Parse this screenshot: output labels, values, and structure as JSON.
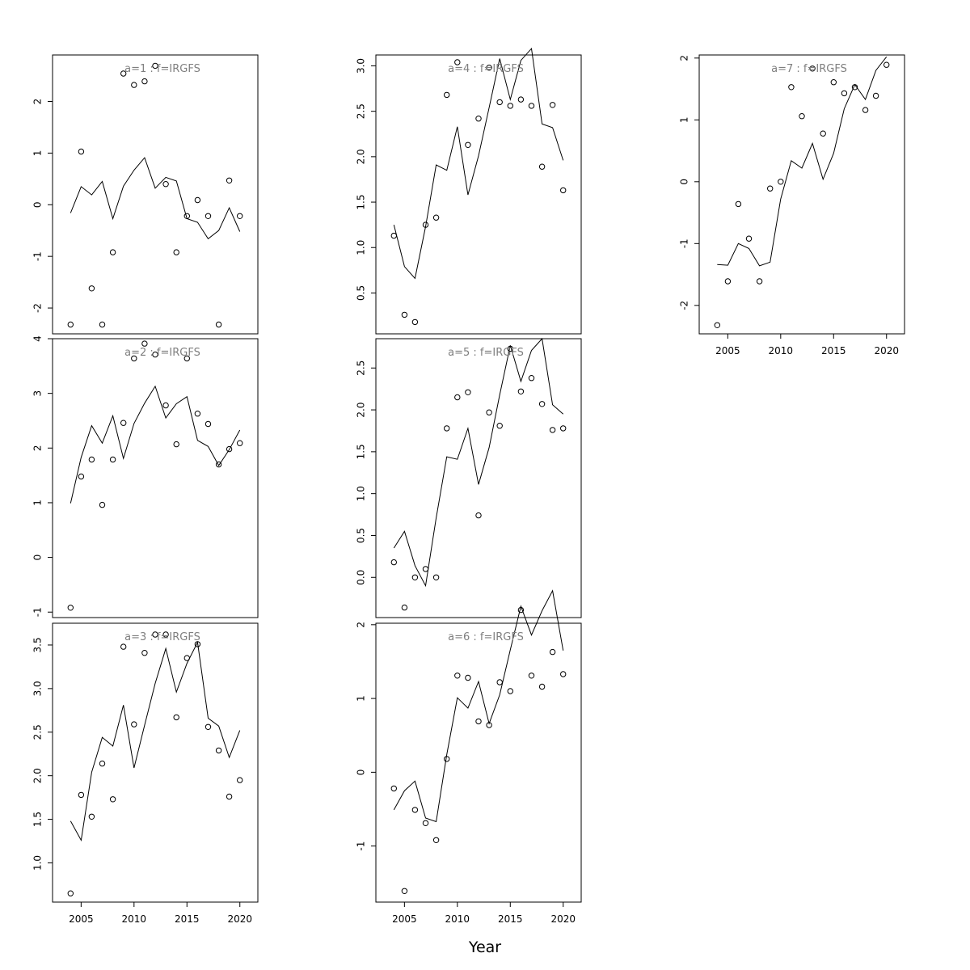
{
  "figure": {
    "xlabel": "Year"
  },
  "chart_data": [
    {
      "type": "scatter",
      "title": "a=1  :  f=IRGFS",
      "x": [
        2004,
        2005,
        2006,
        2007,
        2008,
        2009,
        2010,
        2011,
        2012,
        2013,
        2014,
        2015,
        2016,
        2017,
        2018,
        2019,
        2020
      ],
      "series": [
        {
          "values": [
            -2.32,
            1.03,
            -1.62,
            -2.32,
            -0.92,
            2.54,
            2.32,
            2.39,
            2.69,
            0.4,
            -0.92,
            -0.22,
            0.09,
            -0.22,
            -2.32,
            0.47,
            -0.22
          ]
        },
        {
          "values": [
            -0.16,
            0.35,
            0.19,
            0.45,
            -0.27,
            0.36,
            0.67,
            0.91,
            0.32,
            0.53,
            0.46,
            -0.27,
            -0.34,
            -0.66,
            -0.5,
            -0.06,
            -0.52
          ]
        }
      ],
      "xlim": [
        2002.3,
        2021.7
      ],
      "ylim": [
        -2.5,
        2.9
      ],
      "xticks": [
        2005,
        2010,
        2015,
        2020
      ],
      "yticks": [
        -2,
        -1,
        0,
        1,
        2
      ],
      "show_xticks": false
    },
    {
      "type": "scatter",
      "title": "a=2  :  f=IRGFS",
      "x": [
        2004,
        2005,
        2006,
        2007,
        2008,
        2009,
        2010,
        2011,
        2012,
        2013,
        2014,
        2015,
        2016,
        2017,
        2018,
        2019,
        2020
      ],
      "series": [
        {
          "values": [
            -0.92,
            1.48,
            1.79,
            0.96,
            1.79,
            2.46,
            3.64,
            3.91,
            3.71,
            2.78,
            2.07,
            3.64,
            2.63,
            2.44,
            1.7,
            1.98,
            2.09
          ]
        },
        {
          "values": [
            0.99,
            1.83,
            2.41,
            2.09,
            2.59,
            1.81,
            2.45,
            2.82,
            3.13,
            2.55,
            2.81,
            2.94,
            2.14,
            2.03,
            1.68,
            1.97,
            2.33
          ]
        }
      ],
      "xlim": [
        2002.3,
        2021.7
      ],
      "ylim": [
        -1.1,
        4.0
      ],
      "xticks": [
        2005,
        2010,
        2015,
        2020
      ],
      "yticks": [
        -1,
        0,
        1,
        2,
        3,
        4
      ],
      "show_xticks": false
    },
    {
      "type": "scatter",
      "title": "a=3  :  f=IRGFS",
      "x": [
        2004,
        2005,
        2006,
        2007,
        2008,
        2009,
        2010,
        2011,
        2012,
        2013,
        2014,
        2015,
        2016,
        2017,
        2018,
        2019,
        2020
      ],
      "series": [
        {
          "values": [
            0.65,
            1.78,
            1.53,
            2.14,
            1.73,
            3.48,
            2.59,
            3.41,
            3.62,
            3.62,
            2.67,
            3.35,
            3.51,
            2.56,
            2.29,
            1.76,
            1.95
          ]
        },
        {
          "values": [
            1.48,
            1.26,
            2.04,
            2.44,
            2.34,
            2.81,
            2.09,
            2.58,
            3.06,
            3.46,
            2.96,
            3.29,
            3.53,
            2.66,
            2.57,
            2.21,
            2.52
          ]
        }
      ],
      "xlim": [
        2002.3,
        2021.7
      ],
      "ylim": [
        0.55,
        3.75
      ],
      "xticks": [
        2005,
        2010,
        2015,
        2020
      ],
      "yticks": [
        1.0,
        1.5,
        2.0,
        2.5,
        3.0,
        3.5
      ],
      "show_xticks": true
    },
    {
      "type": "scatter",
      "title": "a=4  :  f=IRGFS",
      "x": [
        2004,
        2005,
        2006,
        2007,
        2008,
        2009,
        2010,
        2011,
        2012,
        2013,
        2014,
        2015,
        2016,
        2017,
        2018,
        2019,
        2020
      ],
      "series": [
        {
          "values": [
            1.13,
            0.26,
            0.18,
            1.25,
            1.33,
            2.68,
            3.04,
            2.13,
            2.42,
            2.98,
            2.6,
            2.56,
            2.63,
            2.56,
            1.89,
            2.57,
            1.63
          ]
        },
        {
          "values": [
            1.25,
            0.79,
            0.66,
            1.23,
            1.91,
            1.85,
            2.33,
            1.58,
            2.01,
            2.54,
            3.08,
            2.63,
            3.06,
            3.19,
            2.36,
            2.32,
            1.96
          ]
        }
      ],
      "xlim": [
        2002.3,
        2021.7
      ],
      "ylim": [
        0.05,
        3.12
      ],
      "xticks": [
        2005,
        2010,
        2015,
        2020
      ],
      "yticks": [
        0.5,
        1.0,
        1.5,
        2.0,
        2.5,
        3.0
      ],
      "show_xticks": false
    },
    {
      "type": "scatter",
      "title": "a=5  :  f=IRGFS",
      "x": [
        2004,
        2005,
        2006,
        2007,
        2008,
        2009,
        2010,
        2011,
        2012,
        2013,
        2014,
        2015,
        2016,
        2017,
        2018,
        2019,
        2020
      ],
      "series": [
        {
          "values": [
            0.18,
            -0.36,
            0.0,
            0.1,
            0.0,
            1.78,
            2.15,
            2.21,
            0.74,
            1.97,
            1.81,
            2.73,
            2.22,
            2.38,
            2.07,
            1.76,
            1.78
          ]
        },
        {
          "values": [
            0.35,
            0.55,
            0.14,
            -0.1,
            0.71,
            1.44,
            1.41,
            1.78,
            1.11,
            1.55,
            2.18,
            2.77,
            2.34,
            2.71,
            2.85,
            2.06,
            1.95
          ]
        }
      ],
      "xlim": [
        2002.3,
        2021.7
      ],
      "ylim": [
        -0.48,
        2.85
      ],
      "xticks": [
        2005,
        2010,
        2015,
        2020
      ],
      "yticks": [
        0.0,
        0.5,
        1.0,
        1.5,
        2.0,
        2.5
      ],
      "show_xticks": false
    },
    {
      "type": "scatter",
      "title": "a=6  :  f=IRGFS",
      "x": [
        2004,
        2005,
        2006,
        2007,
        2008,
        2009,
        2010,
        2011,
        2012,
        2013,
        2014,
        2015,
        2016,
        2017,
        2018,
        2019,
        2020
      ],
      "series": [
        {
          "values": [
            -0.22,
            -1.61,
            -0.51,
            -0.69,
            -0.92,
            0.18,
            1.31,
            1.28,
            0.69,
            0.64,
            1.22,
            1.1,
            2.2,
            1.31,
            1.16,
            1.63,
            1.33
          ]
        },
        {
          "values": [
            -0.51,
            -0.25,
            -0.12,
            -0.62,
            -0.67,
            0.24,
            1.01,
            0.87,
            1.23,
            0.66,
            1.05,
            1.66,
            2.25,
            1.86,
            2.19,
            2.46,
            1.65
          ]
        }
      ],
      "xlim": [
        2002.3,
        2021.7
      ],
      "ylim": [
        -1.76,
        2.02
      ],
      "xticks": [
        2005,
        2010,
        2015,
        2020
      ],
      "yticks": [
        -1,
        0,
        1,
        2
      ],
      "show_xticks": true
    },
    {
      "type": "scatter",
      "title": "a=7  :  f=IRGFS",
      "x": [
        2004,
        2005,
        2006,
        2007,
        2008,
        2009,
        2010,
        2011,
        2012,
        2013,
        2014,
        2015,
        2016,
        2017,
        2018,
        2019,
        2020
      ],
      "series": [
        {
          "values": [
            -2.32,
            -1.61,
            -0.36,
            -0.92,
            -1.61,
            -0.11,
            0.0,
            1.53,
            1.06,
            1.83,
            0.78,
            1.61,
            1.43,
            1.53,
            1.16,
            1.39,
            1.89
          ]
        },
        {
          "values": [
            -1.34,
            -1.35,
            -1.0,
            -1.08,
            -1.36,
            -1.3,
            -0.28,
            0.34,
            0.22,
            0.62,
            0.04,
            0.46,
            1.18,
            1.57,
            1.33,
            1.8,
            2.02
          ]
        }
      ],
      "xlim": [
        2002.3,
        2021.7
      ],
      "ylim": [
        -2.46,
        2.05
      ],
      "xticks": [
        2005,
        2010,
        2015,
        2020
      ],
      "yticks": [
        -2,
        -1,
        0,
        1,
        2
      ],
      "show_xticks": true
    }
  ]
}
